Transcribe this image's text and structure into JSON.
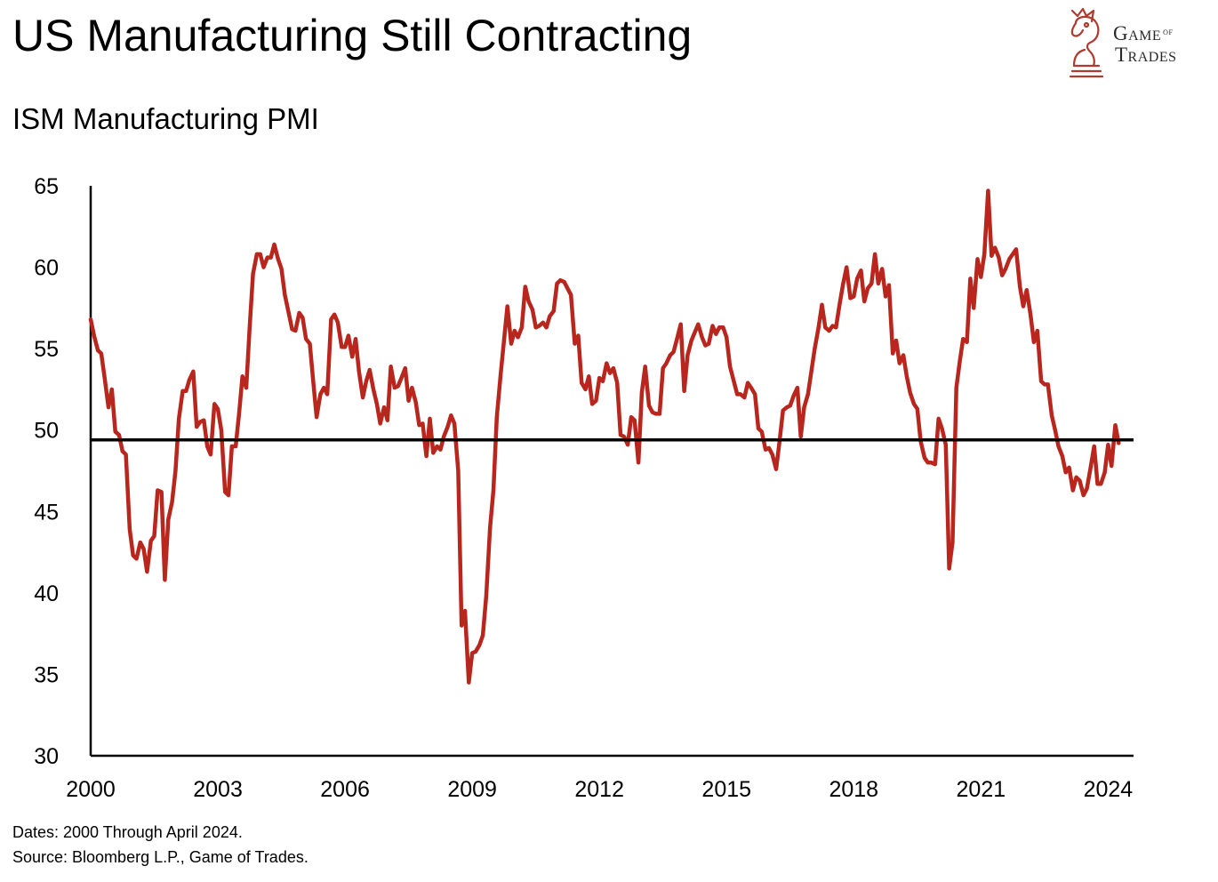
{
  "title": "US Manufacturing Still Contracting",
  "subtitle": "ISM Manufacturing PMI",
  "brand": {
    "line1": "Game",
    "of": "of",
    "line2": "Trades",
    "color": "#b03a2e"
  },
  "notes": {
    "dates": "Dates: 2000 Through April 2024.",
    "source": "Source: Bloomberg L.P., Game of Trades."
  },
  "chart_data": {
    "type": "line",
    "title": "ISM Manufacturing PMI",
    "xlabel": "",
    "ylabel": "",
    "xlim": [
      2000.0,
      2024.6
    ],
    "ylim": [
      30,
      65
    ],
    "yticks": [
      30,
      35,
      40,
      45,
      50,
      55,
      60,
      65
    ],
    "xticks": [
      2000,
      2003,
      2006,
      2009,
      2012,
      2015,
      2018,
      2021,
      2024
    ],
    "xtick_labels": [
      "2000",
      "2003",
      "2006",
      "2009",
      "2012",
      "2015",
      "2018",
      "2021",
      "2024"
    ],
    "grid": false,
    "line_color": "#b8261e",
    "reference_line": {
      "value": 49.4,
      "color": "#000000"
    },
    "series": [
      {
        "x": [
          2000.0,
          2000.08,
          2000.17,
          2000.25,
          2000.33,
          2000.42,
          2000.5,
          2000.58,
          2000.67,
          2000.75,
          2000.83,
          2000.92,
          2001.0,
          2001.08,
          2001.17,
          2001.25,
          2001.33,
          2001.42,
          2001.5,
          2001.58,
          2001.67,
          2001.75,
          2001.83,
          2001.92,
          2002.0,
          2002.08,
          2002.17,
          2002.25,
          2002.33,
          2002.42,
          2002.5,
          2002.58,
          2002.67,
          2002.75,
          2002.83,
          2002.92,
          2003.0,
          2003.08,
          2003.17,
          2003.25,
          2003.33,
          2003.42,
          2003.5,
          2003.58,
          2003.67,
          2003.75,
          2003.83,
          2003.92,
          2004.0,
          2004.08,
          2004.17,
          2004.25,
          2004.33,
          2004.42,
          2004.5,
          2004.58,
          2004.67,
          2004.75,
          2004.83,
          2004.92,
          2005.0,
          2005.08,
          2005.17,
          2005.25,
          2005.33,
          2005.42,
          2005.5,
          2005.58,
          2005.67,
          2005.75,
          2005.83,
          2005.92,
          2006.0,
          2006.08,
          2006.17,
          2006.25,
          2006.33,
          2006.42,
          2006.5,
          2006.58,
          2006.67,
          2006.75,
          2006.83,
          2006.92,
          2007.0,
          2007.08,
          2007.17,
          2007.25,
          2007.33,
          2007.42,
          2007.5,
          2007.58,
          2007.67,
          2007.75,
          2007.83,
          2007.92,
          2008.0,
          2008.08,
          2008.17,
          2008.25,
          2008.33,
          2008.42,
          2008.5,
          2008.58,
          2008.67,
          2008.75,
          2008.83,
          2008.92,
          2009.0,
          2009.08,
          2009.17,
          2009.25,
          2009.33,
          2009.42,
          2009.5,
          2009.58,
          2009.67,
          2009.75,
          2009.83,
          2009.92,
          2010.0,
          2010.08,
          2010.17,
          2010.25,
          2010.33,
          2010.42,
          2010.5,
          2010.58,
          2010.67,
          2010.75,
          2010.83,
          2010.92,
          2011.0,
          2011.08,
          2011.17,
          2011.25,
          2011.33,
          2011.42,
          2011.5,
          2011.58,
          2011.67,
          2011.75,
          2011.83,
          2011.92,
          2012.0,
          2012.08,
          2012.17,
          2012.25,
          2012.33,
          2012.42,
          2012.5,
          2012.58,
          2012.67,
          2012.75,
          2012.83,
          2012.92,
          2013.0,
          2013.08,
          2013.17,
          2013.25,
          2013.33,
          2013.42,
          2013.5,
          2013.58,
          2013.67,
          2013.75,
          2013.83,
          2013.92,
          2014.0,
          2014.08,
          2014.17,
          2014.25,
          2014.33,
          2014.42,
          2014.5,
          2014.58,
          2014.67,
          2014.75,
          2014.83,
          2014.92,
          2015.0,
          2015.08,
          2015.17,
          2015.25,
          2015.33,
          2015.42,
          2015.5,
          2015.58,
          2015.67,
          2015.75,
          2015.83,
          2015.92,
          2016.0,
          2016.08,
          2016.17,
          2016.25,
          2016.33,
          2016.42,
          2016.5,
          2016.58,
          2016.67,
          2016.75,
          2016.83,
          2016.92,
          2017.0,
          2017.08,
          2017.17,
          2017.25,
          2017.33,
          2017.42,
          2017.5,
          2017.58,
          2017.67,
          2017.75,
          2017.83,
          2017.92,
          2018.0,
          2018.08,
          2018.17,
          2018.25,
          2018.33,
          2018.42,
          2018.5,
          2018.58,
          2018.67,
          2018.75,
          2018.83,
          2018.92,
          2019.0,
          2019.08,
          2019.17,
          2019.25,
          2019.33,
          2019.42,
          2019.5,
          2019.58,
          2019.67,
          2019.75,
          2019.83,
          2019.92,
          2020.0,
          2020.08,
          2020.17,
          2020.25,
          2020.33,
          2020.42,
          2020.5,
          2020.58,
          2020.67,
          2020.75,
          2020.83,
          2020.92,
          2021.0,
          2021.08,
          2021.17,
          2021.25,
          2021.33,
          2021.42,
          2021.5,
          2021.58,
          2021.67,
          2021.75,
          2021.83,
          2021.92,
          2022.0,
          2022.08,
          2022.17,
          2022.25,
          2022.33,
          2022.42,
          2022.5,
          2022.58,
          2022.67,
          2022.75,
          2022.83,
          2022.92,
          2023.0,
          2023.08,
          2023.17,
          2023.25,
          2023.33,
          2023.42,
          2023.5,
          2023.58,
          2023.67,
          2023.75,
          2023.83,
          2023.92,
          2024.0,
          2024.08,
          2024.17,
          2024.25
        ],
        "y": [
          56.8,
          55.8,
          54.9,
          54.7,
          53.2,
          51.4,
          52.5,
          49.9,
          49.7,
          48.7,
          48.5,
          43.9,
          42.3,
          42.1,
          43.1,
          42.7,
          41.3,
          43.2,
          43.5,
          46.3,
          46.2,
          40.8,
          44.5,
          45.6,
          47.5,
          50.7,
          52.4,
          52.4,
          53.1,
          53.6,
          50.2,
          50.5,
          50.6,
          49.0,
          48.5,
          51.6,
          51.3,
          50.0,
          46.2,
          46.0,
          49.0,
          49.0,
          51.0,
          53.3,
          52.6,
          56.3,
          59.6,
          60.8,
          60.8,
          60.0,
          60.6,
          60.6,
          61.4,
          60.5,
          59.9,
          58.3,
          57.2,
          56.2,
          56.1,
          57.2,
          56.9,
          55.6,
          55.3,
          53.0,
          50.8,
          52.2,
          52.6,
          52.2,
          56.8,
          57.1,
          56.6,
          55.1,
          55.1,
          55.8,
          54.5,
          55.6,
          53.6,
          52.0,
          53.0,
          53.7,
          52.5,
          51.6,
          50.4,
          51.4,
          50.6,
          53.9,
          52.6,
          52.7,
          53.2,
          53.8,
          51.8,
          52.6,
          51.7,
          50.3,
          50.4,
          48.4,
          50.7,
          48.6,
          49.0,
          48.8,
          49.6,
          50.2,
          50.9,
          50.4,
          47.5,
          38.0,
          38.9,
          34.5,
          36.3,
          36.4,
          36.8,
          37.4,
          39.8,
          44.0,
          46.3,
          50.8,
          53.4,
          55.5,
          57.6,
          55.3,
          56.1,
          55.7,
          56.3,
          58.8,
          57.9,
          57.4,
          56.3,
          56.4,
          56.6,
          56.3,
          57.0,
          57.3,
          59.0,
          59.2,
          59.1,
          58.7,
          58.3,
          55.3,
          55.8,
          52.9,
          52.5,
          53.3,
          51.6,
          51.8,
          53.2,
          53.0,
          54.1,
          53.5,
          53.8,
          52.9,
          49.7,
          49.6,
          49.1,
          50.8,
          50.6,
          48.0,
          52.3,
          53.9,
          51.5,
          51.1,
          51.0,
          51.0,
          53.8,
          54.1,
          54.6,
          54.8,
          55.6,
          56.5,
          52.4,
          54.6,
          55.5,
          56.0,
          56.5,
          55.7,
          55.2,
          55.3,
          56.4,
          55.9,
          56.3,
          56.3,
          55.7,
          53.9,
          53.0,
          52.2,
          52.2,
          52.0,
          52.9,
          52.6,
          52.2,
          50.1,
          49.9,
          48.8,
          48.9,
          48.5,
          47.6,
          49.3,
          51.2,
          51.4,
          51.5,
          52.1,
          52.6,
          49.6,
          51.4,
          52.2,
          53.6,
          55.0,
          56.3,
          57.7,
          56.3,
          56.1,
          56.4,
          56.3,
          57.8,
          59.0,
          60.0,
          58.1,
          58.2,
          59.3,
          59.8,
          57.9,
          58.7,
          59.0,
          60.8,
          59.0,
          59.9,
          58.2,
          58.9,
          54.7,
          55.5,
          54.1,
          54.6,
          53.3,
          52.3,
          51.6,
          51.3,
          49.3,
          48.3,
          48.0,
          48.0,
          47.9,
          50.7,
          50.1,
          49.1,
          41.5,
          43.1,
          52.6,
          54.2,
          55.6,
          55.4,
          59.3,
          57.5,
          60.5,
          59.4,
          60.8,
          64.7,
          60.7,
          61.2,
          60.6,
          59.5,
          59.9,
          60.5,
          60.8,
          61.1,
          58.8,
          57.6,
          58.6,
          57.1,
          55.4,
          56.1,
          53.0,
          52.8,
          52.8,
          50.9,
          50.0,
          49.0,
          48.4,
          47.4,
          47.7,
          46.3,
          47.1,
          46.9,
          46.0,
          46.4,
          47.6,
          49.0,
          46.7,
          46.7,
          47.4,
          49.1,
          47.8,
          50.3,
          49.2
        ]
      }
    ]
  }
}
